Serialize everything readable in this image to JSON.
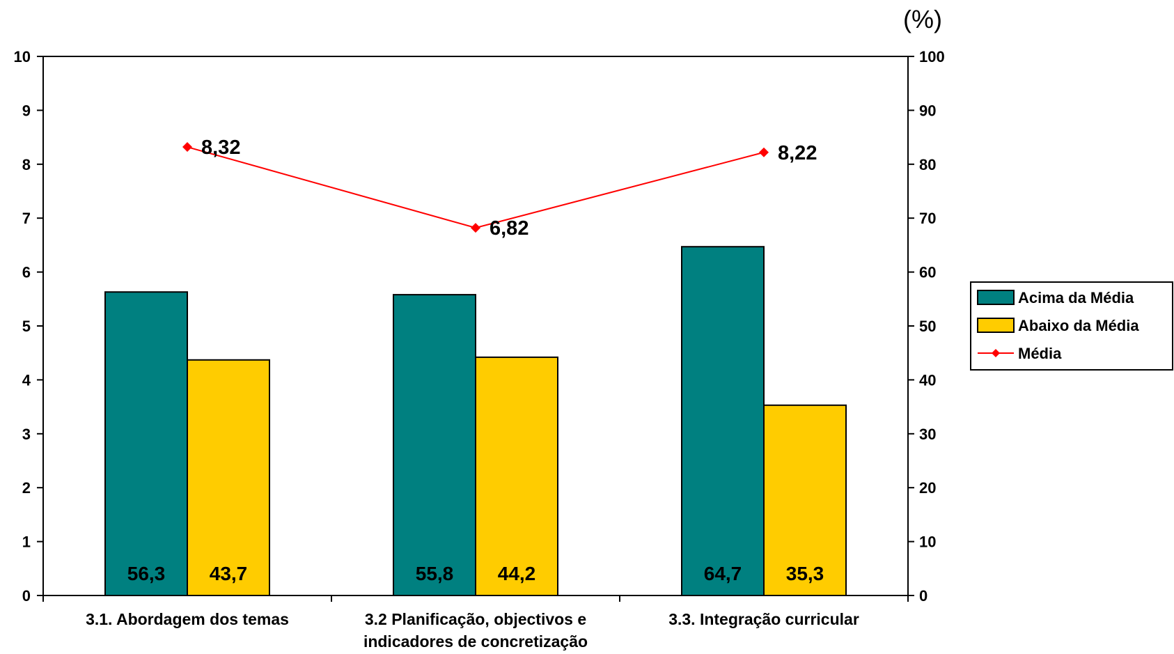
{
  "chart_data": {
    "type": "bar",
    "categories": [
      [
        "3.1. Abordagem dos temas"
      ],
      [
        "3.2 Planificação, objectivos e",
        "indicadores de concretização"
      ],
      [
        "3.3. Integração curricular"
      ]
    ],
    "series": [
      {
        "name": "Acima da Média",
        "axis": "right",
        "values": [
          56.3,
          55.8,
          64.7
        ],
        "labels": [
          "56,3",
          "55,8",
          "64,7"
        ],
        "color": "#008080"
      },
      {
        "name": "Abaixo da Média",
        "axis": "right",
        "values": [
          43.7,
          44.2,
          35.3
        ],
        "labels": [
          "43,7",
          "44,2",
          "35,3"
        ],
        "color": "#FFCC00"
      },
      {
        "name": "Média",
        "type": "line",
        "axis": "left",
        "values": [
          8.32,
          6.82,
          8.22
        ],
        "labels": [
          "8,32",
          "6,82",
          "8,22"
        ],
        "color": "#FF0000"
      }
    ],
    "left_axis": {
      "ylim": [
        0,
        10
      ],
      "ticks": [
        "0",
        "1",
        "2",
        "3",
        "4",
        "5",
        "6",
        "7",
        "8",
        "9",
        "10"
      ]
    },
    "right_axis": {
      "ylim": [
        0,
        100
      ],
      "ticks": [
        "0",
        "10",
        "20",
        "30",
        "40",
        "50",
        "60",
        "70",
        "80",
        "90",
        "100"
      ],
      "unit": "(%)"
    },
    "legend": {
      "position": "right"
    },
    "grid": false
  }
}
